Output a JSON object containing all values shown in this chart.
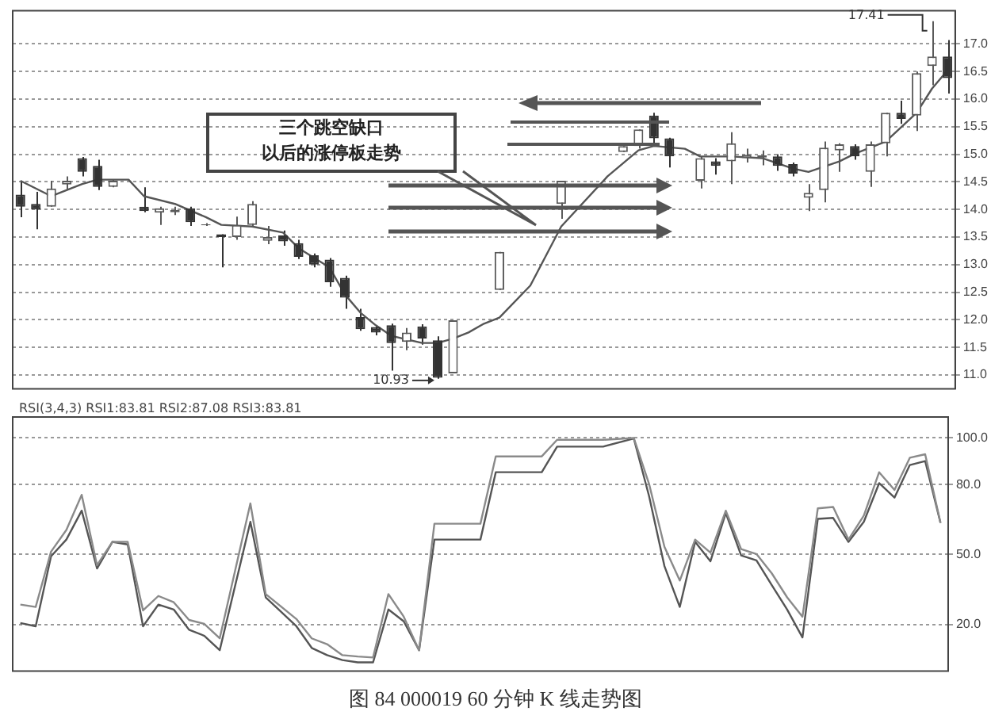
{
  "chart_data": [
    {
      "type": "candlestick",
      "categories": [
        null,
        null,
        null,
        null,
        null,
        null,
        null,
        null,
        null,
        null,
        null,
        null,
        null,
        null,
        null,
        null,
        null,
        null,
        null,
        null,
        null,
        null,
        null,
        null,
        null,
        null,
        null,
        null,
        null,
        null,
        null,
        null,
        null,
        null,
        null,
        null,
        null,
        null,
        null,
        null,
        null,
        null,
        null,
        null,
        null,
        null,
        null,
        null,
        null,
        null,
        null,
        null,
        null,
        null,
        null,
        null,
        null,
        null,
        null,
        null,
        null
      ],
      "ohlc": [
        [
          14.27,
          14.52,
          13.86,
          14.05
        ],
        [
          14.1,
          14.32,
          13.64,
          14.0
        ],
        [
          14.05,
          14.52,
          14.05,
          14.38
        ],
        [
          14.45,
          14.6,
          14.35,
          14.52
        ],
        [
          14.93,
          14.95,
          14.6,
          14.68
        ],
        [
          14.79,
          14.9,
          14.35,
          14.41
        ],
        [
          14.41,
          14.55,
          14.4,
          14.52
        ],
        null,
        [
          14.05,
          14.4,
          13.95,
          13.97
        ],
        [
          13.94,
          14.05,
          13.72,
          14.02
        ],
        [
          13.95,
          14.05,
          13.9,
          13.99
        ],
        [
          14.02,
          14.05,
          13.7,
          13.77
        ],
        [
          13.71,
          13.75,
          13.7,
          13.73
        ],
        [
          13.55,
          13.55,
          12.95,
          13.5
        ],
        [
          13.5,
          13.87,
          13.45,
          13.72
        ],
        [
          13.72,
          14.15,
          13.7,
          14.1
        ],
        [
          13.43,
          13.7,
          13.37,
          13.5
        ],
        [
          13.53,
          13.62,
          13.34,
          13.42
        ],
        [
          13.39,
          13.45,
          13.1,
          13.14
        ],
        [
          13.17,
          13.2,
          12.95,
          13.0
        ],
        [
          13.09,
          13.12,
          12.6,
          12.68
        ],
        [
          12.76,
          12.8,
          12.2,
          12.4
        ],
        [
          12.05,
          12.2,
          11.8,
          11.83
        ],
        [
          11.87,
          11.9,
          11.72,
          11.77
        ],
        [
          11.9,
          11.93,
          11.08,
          11.58
        ],
        [
          11.6,
          11.85,
          11.45,
          11.77
        ],
        [
          11.88,
          11.92,
          11.55,
          11.66
        ],
        [
          11.63,
          11.7,
          10.93,
          10.95
        ],
        [
          11.03,
          11.99,
          11.03,
          11.99
        ],
        null,
        null,
        [
          12.54,
          13.23,
          12.54,
          13.23
        ],
        null,
        null,
        null,
        [
          14.1,
          14.52,
          13.83,
          14.52
        ],
        null,
        null,
        null,
        [
          15.04,
          15.15,
          15.04,
          15.15
        ],
        [
          15.15,
          15.45,
          15.1,
          15.45
        ],
        [
          15.7,
          15.75,
          15.2,
          15.29
        ],
        [
          15.29,
          15.3,
          14.76,
          14.96
        ],
        null,
        [
          14.52,
          14.96,
          14.38,
          14.93
        ],
        [
          14.87,
          14.93,
          14.63,
          14.79
        ],
        [
          14.87,
          15.4,
          14.46,
          15.2
        ],
        [
          14.93,
          15.1,
          14.85,
          14.99
        ],
        [
          14.94,
          15.07,
          14.8,
          14.98
        ],
        [
          14.96,
          15.0,
          14.7,
          14.79
        ],
        [
          14.82,
          14.85,
          14.6,
          14.65
        ],
        [
          14.21,
          14.46,
          13.97,
          14.3
        ],
        [
          14.35,
          15.23,
          14.13,
          15.12
        ],
        [
          15.07,
          15.2,
          14.68,
          15.18
        ],
        [
          15.15,
          15.18,
          14.9,
          14.96
        ],
        [
          14.68,
          15.23,
          14.41,
          15.18
        ],
        [
          15.2,
          15.75,
          14.96,
          15.75
        ],
        [
          15.75,
          15.97,
          15.55,
          15.64
        ],
        [
          15.7,
          16.5,
          15.42,
          16.47
        ],
        [
          16.6,
          17.41,
          16.25,
          16.77
        ],
        [
          16.77,
          17.07,
          16.1,
          16.38
        ]
      ],
      "colors": [
        "#333333",
        "#333333",
        "#5a5a5a",
        "#5a5a5a",
        "#333333",
        "#333333",
        "#5a5a5a",
        null,
        "#333333",
        "#5a5a5a",
        "#5a5a5a",
        "#333333",
        "#5a5a5a",
        "#333333",
        "#5a5a5a",
        "#5a5a5a",
        "#5a5a5a",
        "#333333",
        "#333333",
        "#333333",
        "#333333",
        "#333333",
        "#333333",
        "#333333",
        "#333333",
        "#5a5a5a",
        "#333333",
        "#333333",
        "#5a5a5a",
        null,
        null,
        "#5a5a5a",
        null,
        null,
        null,
        "#5a5a5a",
        null,
        null,
        null,
        "#5a5a5a",
        "#5a5a5a",
        "#333333",
        "#333333",
        null,
        "#5a5a5a",
        "#333333",
        "#5a5a5a",
        "#5a5a5a",
        "#5a5a5a",
        "#333333",
        "#333333",
        "#5a5a5a",
        "#5a5a5a",
        "#5a5a5a",
        "#333333",
        "#5a5a5a",
        "#5a5a5a",
        "#333333",
        "#5a5a5a",
        "#5a5a5a",
        "#333333"
      ],
      "series": [
        {
          "type": "line",
          "color": "#555555",
          "values": [
            14.52,
            null,
            14.24,
            null,
            14.46,
            14.54,
            null,
            14.54,
            14.24,
            null,
            14.1,
            null,
            13.86,
            13.72,
            null,
            13.69,
            null,
            13.58,
            13.3,
            null,
            12.95,
            12.46,
            12.13,
            11.9,
            11.71,
            null,
            11.58,
            11.58,
            11.66,
            11.77,
            11.93,
            12.04,
            null,
            12.62,
            null,
            13.69,
            null,
            null,
            14.6,
            null,
            15.07,
            15.15,
            null,
            15.1,
            14.96,
            null,
            14.96,
            null,
            14.93,
            null,
            14.74,
            14.68,
            null,
            14.87,
            15.01,
            null,
            15.23,
            null,
            15.75,
            16.19,
            16.52
          ]
        }
      ],
      "ylim": [
        10.75,
        17.6
      ],
      "yticks": [
        {
          "value": 11,
          "label": "11.0"
        },
        {
          "value": 11.5,
          "label": "11.5"
        },
        {
          "value": 12,
          "label": "12.0"
        },
        {
          "value": 12.5,
          "label": "12.5"
        },
        {
          "value": 13,
          "label": "13.0"
        },
        {
          "value": 13.5,
          "label": "13.5"
        },
        {
          "value": 14,
          "label": "14.0"
        },
        {
          "value": 14.5,
          "label": "14.5"
        },
        {
          "value": 15,
          "label": "15.0"
        },
        {
          "value": 15.5,
          "label": "15.5"
        },
        {
          "value": 16,
          "label": "16.0"
        },
        {
          "value": 16.5,
          "label": "16.5"
        },
        {
          "value": 17,
          "label": "17.0"
        }
      ],
      "grid": "y",
      "legend": false,
      "annotations": [
        "三个跳空缺口",
        "以后的涨停板走势",
        "10.93",
        "17.41"
      ]
    },
    {
      "type": "line",
      "title": "RSI(3,4,3) RSI1:83.81 RSI2:87.08 RSI3:83.81",
      "categories": [
        null,
        null,
        null,
        null,
        null,
        null,
        null,
        null,
        null,
        null,
        null,
        null,
        null,
        null,
        null,
        null,
        null,
        null,
        null,
        null,
        null,
        null,
        null,
        null,
        null,
        null,
        null,
        null,
        null,
        null,
        null,
        null,
        null,
        null,
        null,
        null,
        null,
        null,
        null,
        null,
        null,
        null,
        null,
        null,
        null,
        null,
        null,
        null,
        null,
        null,
        null,
        null,
        null,
        null,
        null,
        null,
        null,
        null,
        null,
        null,
        null
      ],
      "series": [
        {
          "color": "#8a8a8a",
          "values": [
            28.5,
            27.5,
            51.2,
            60.5,
            75.6,
            45.4,
            55.4,
            55.4,
            26,
            32.2,
            29.5,
            21.9,
            20.2,
            14,
            null,
            71.9,
            33,
            null,
            22.3,
            14,
            11.5,
            6.8,
            6.2,
            5.8,
            33,
            23.3,
            8.9,
            63.2,
            null,
            null,
            63.2,
            92.1,
            null,
            null,
            92.1,
            99.2,
            null,
            null,
            99.2,
            null,
            100,
            80.2,
            53.3,
            38.8,
            56.4,
            50.8,
            68.8,
            52.3,
            50.2,
            41.9,
            31.6,
            23.3,
            69.8,
            70.4,
            56.4,
            66.7,
            85.3,
            77.7,
            91.5,
            93,
            63.6
          ]
        },
        {
          "color": "#555555",
          "values": [
            20.6,
            19.2,
            49.2,
            56.4,
            68.8,
            44,
            55.4,
            54.3,
            19.2,
            28.5,
            26.4,
            17.7,
            15.1,
            8.9,
            null,
            64,
            31.6,
            null,
            19.2,
            9.9,
            6.8,
            4.7,
            3.7,
            3.7,
            26.4,
            21.3,
            8.9,
            56.4,
            null,
            null,
            56.4,
            85.3,
            null,
            null,
            85.3,
            96.3,
            null,
            null,
            96.3,
            null,
            99.8,
            75,
            45,
            27.5,
            55.4,
            47.1,
            67.8,
            49.6,
            47.5,
            36.8,
            26.4,
            14.4,
            65.3,
            65.7,
            55.4,
            64,
            80.6,
            74.4,
            88.4,
            90.1,
            63.6
          ]
        }
      ],
      "ylim": [
        0,
        109
      ],
      "yticks": [
        {
          "value": 20,
          "label": "20.0"
        },
        {
          "value": 50,
          "label": "50.0"
        },
        {
          "value": 80,
          "label": "80.0"
        },
        {
          "value": 100,
          "label": "100.0"
        }
      ],
      "grid": "y",
      "legend": false,
      "annotations": [
        "图 84 000019 60 分钟 K 线走势图"
      ]
    }
  ]
}
